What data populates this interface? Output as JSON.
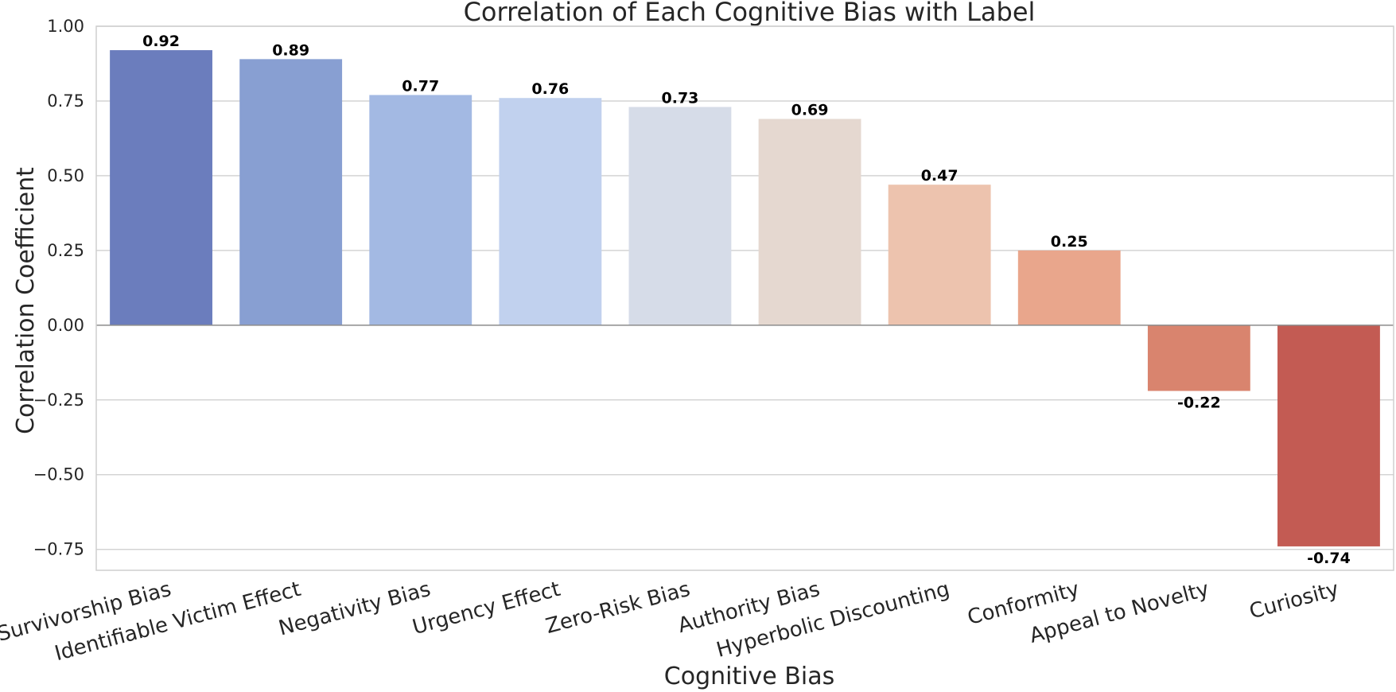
{
  "chart_data": {
    "type": "bar",
    "title": "Correlation of Each Cognitive Bias with Label",
    "xlabel": "Cognitive Bias",
    "ylabel": "Correlation Coefficient",
    "categories": [
      "Survivorship Bias",
      "Identifiable Victim Effect",
      "Negativity Bias",
      "Urgency Effect",
      "Zero-Risk Bias",
      "Authority Bias",
      "Hyperbolic Discounting",
      "Conformity",
      "Appeal to Novelty",
      "Curiosity"
    ],
    "values": [
      0.92,
      0.89,
      0.77,
      0.76,
      0.73,
      0.69,
      0.47,
      0.25,
      -0.22,
      -0.74
    ],
    "value_labels": [
      "0.92",
      "0.89",
      "0.77",
      "0.76",
      "0.73",
      "0.69",
      "0.47",
      "0.25",
      "-0.22",
      "-0.74"
    ],
    "colors": [
      "#6b7dbd",
      "#889fd2",
      "#a3b9e3",
      "#c1d1ee",
      "#d6dce8",
      "#e5d8d0",
      "#edc3ae",
      "#e9a68c",
      "#d9846e",
      "#c35b53"
    ],
    "ylim": [
      -0.82,
      1.0
    ],
    "yticks": [
      1.0,
      0.75,
      0.5,
      0.25,
      0.0,
      -0.25,
      -0.5,
      -0.75
    ],
    "ytick_labels": [
      "1.00",
      "0.75",
      "0.50",
      "0.25",
      "0.00",
      "−0.25",
      "−0.50",
      "−0.75"
    ],
    "grid": true
  }
}
